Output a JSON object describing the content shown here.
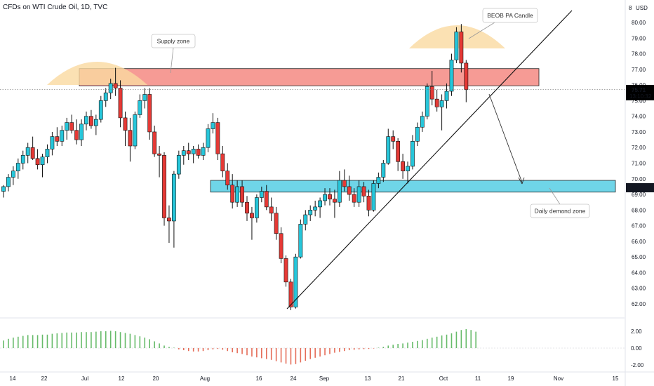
{
  "header": {
    "title": "CFDs on WTI Crude Oil, 1D, TVC"
  },
  "axis": {
    "currency": "USD",
    "currency_index": "8"
  },
  "price_tag": {
    "price": "75.71",
    "countdown": "13:10:32",
    "color": "#000000"
  },
  "demand_tag": {
    "price": "69.47",
    "color": "#131722"
  },
  "annotations": {
    "supply": "Supply zone",
    "beob": "BEOB PA Candle",
    "demand": "Daily demand zone"
  },
  "colors": {
    "up": "#26c6da",
    "down": "#e53935",
    "supply_zone": "#f48a83",
    "demand_zone": "#5fd0e6",
    "hump": "#fad9a0"
  },
  "chart_data": [
    {
      "type": "candlestick",
      "title": "CFDs on WTI Crude Oil, 1D, TVC",
      "ylim": [
        61.2,
        81.0
      ],
      "y_ticks": [
        "62.00",
        "63.00",
        "64.00",
        "65.00",
        "66.00",
        "67.00",
        "68.00",
        "69.00",
        "70.00",
        "71.00",
        "72.00",
        "73.00",
        "74.00",
        "75.00",
        "76.00",
        "77.00",
        "78.00",
        "79.00",
        "80.00"
      ],
      "x_ticks": [
        "14",
        "22",
        "Jul",
        "12",
        "20",
        "Aug",
        "16",
        "24",
        "Sep",
        "13",
        "21",
        "Oct",
        "11",
        "19",
        "Nov",
        "15"
      ],
      "zones": [
        {
          "name": "Supply zone",
          "from": 75.95,
          "to": 77.05
        },
        {
          "name": "Daily demand zone",
          "from": 69.15,
          "to": 69.9
        }
      ],
      "candles": [
        [
          69.2,
          69.6,
          68.8,
          69.5
        ],
        [
          69.5,
          70.3,
          69.2,
          70.1
        ],
        [
          70.1,
          70.8,
          69.6,
          70.5
        ],
        [
          70.5,
          71.3,
          70.0,
          71.0
        ],
        [
          71.0,
          71.8,
          70.6,
          71.5
        ],
        [
          71.5,
          72.3,
          71.0,
          72.0
        ],
        [
          72.0,
          72.7,
          71.2,
          71.3
        ],
        [
          71.3,
          71.9,
          70.6,
          70.9
        ],
        [
          70.9,
          71.6,
          70.1,
          71.4
        ],
        [
          71.4,
          72.2,
          71.0,
          71.9
        ],
        [
          71.9,
          73.0,
          71.5,
          72.7
        ],
        [
          72.7,
          73.3,
          72.1,
          72.4
        ],
        [
          72.4,
          73.4,
          72.1,
          73.1
        ],
        [
          73.1,
          73.9,
          72.5,
          73.6
        ],
        [
          73.6,
          74.1,
          72.9,
          73.1
        ],
        [
          73.1,
          73.8,
          72.2,
          72.5
        ],
        [
          72.5,
          73.8,
          72.1,
          73.5
        ],
        [
          73.5,
          74.3,
          73.1,
          74.0
        ],
        [
          74.0,
          74.4,
          73.2,
          73.4
        ],
        [
          73.4,
          74.1,
          72.8,
          73.8
        ],
        [
          73.8,
          75.3,
          73.6,
          75.0
        ],
        [
          75.0,
          75.8,
          74.6,
          75.5
        ],
        [
          75.5,
          76.4,
          75.1,
          76.1
        ],
        [
          76.1,
          77.1,
          75.3,
          75.8
        ],
        [
          75.8,
          76.3,
          73.3,
          73.9
        ],
        [
          73.9,
          74.3,
          72.1,
          73.1
        ],
        [
          73.1,
          73.9,
          71.1,
          72.1
        ],
        [
          72.1,
          74.3,
          71.9,
          74.1
        ],
        [
          74.1,
          75.4,
          73.9,
          75.0
        ],
        [
          75.0,
          75.8,
          74.5,
          75.4
        ],
        [
          75.4,
          75.8,
          72.5,
          73.0
        ],
        [
          73.0,
          73.4,
          71.4,
          71.6
        ],
        [
          71.6,
          72.1,
          70.1,
          71.5
        ],
        [
          71.5,
          71.7,
          67.0,
          67.5
        ],
        [
          67.5,
          68.3,
          65.9,
          67.3
        ],
        [
          67.3,
          70.5,
          65.6,
          70.3
        ],
        [
          70.3,
          71.8,
          70.0,
          71.5
        ],
        [
          71.5,
          72.1,
          70.9,
          71.8
        ],
        [
          71.8,
          72.3,
          71.2,
          71.6
        ],
        [
          71.6,
          72.1,
          71.0,
          71.9
        ],
        [
          71.9,
          72.2,
          71.3,
          71.5
        ],
        [
          71.5,
          72.3,
          71.2,
          72.0
        ],
        [
          72.0,
          73.5,
          71.7,
          73.2
        ],
        [
          73.2,
          74.2,
          72.9,
          73.6
        ],
        [
          73.6,
          73.9,
          71.2,
          71.6
        ],
        [
          71.6,
          72.1,
          70.1,
          70.5
        ],
        [
          70.5,
          71.0,
          69.3,
          69.6
        ],
        [
          69.6,
          70.3,
          68.1,
          68.5
        ],
        [
          68.5,
          69.9,
          68.2,
          69.5
        ],
        [
          69.5,
          69.9,
          68.2,
          68.5
        ],
        [
          68.5,
          68.9,
          67.3,
          67.8
        ],
        [
          67.8,
          68.2,
          66.1,
          67.5
        ],
        [
          67.5,
          69.0,
          67.2,
          68.8
        ],
        [
          68.8,
          69.5,
          68.5,
          69.2
        ],
        [
          69.2,
          69.6,
          68.0,
          68.2
        ],
        [
          68.2,
          68.8,
          67.3,
          67.8
        ],
        [
          67.8,
          68.2,
          66.1,
          66.5
        ],
        [
          66.5,
          66.9,
          64.6,
          64.9
        ],
        [
          64.9,
          65.1,
          63.1,
          63.4
        ],
        [
          63.4,
          63.6,
          61.6,
          61.8
        ],
        [
          61.8,
          65.2,
          61.7,
          65.0
        ],
        [
          65.0,
          67.4,
          64.9,
          67.1
        ],
        [
          67.1,
          68.0,
          66.7,
          67.7
        ],
        [
          67.7,
          68.3,
          67.3,
          68.0
        ],
        [
          68.0,
          68.6,
          67.6,
          68.2
        ],
        [
          68.2,
          68.8,
          67.5,
          68.6
        ],
        [
          68.6,
          69.4,
          68.3,
          69.0
        ],
        [
          69.0,
          69.4,
          68.3,
          68.7
        ],
        [
          68.7,
          69.3,
          67.5,
          68.5
        ],
        [
          68.5,
          70.5,
          68.2,
          69.9
        ],
        [
          69.9,
          70.6,
          69.2,
          69.5
        ],
        [
          69.5,
          70.2,
          68.6,
          69.0
        ],
        [
          69.0,
          69.4,
          68.2,
          68.5
        ],
        [
          68.5,
          69.9,
          68.2,
          69.5
        ],
        [
          69.5,
          69.8,
          68.5,
          68.9
        ],
        [
          68.9,
          69.3,
          67.6,
          68.0
        ],
        [
          68.0,
          69.9,
          67.9,
          69.7
        ],
        [
          69.7,
          70.4,
          69.4,
          70.1
        ],
        [
          70.1,
          71.2,
          69.8,
          71.0
        ],
        [
          71.0,
          73.2,
          70.9,
          72.7
        ],
        [
          72.7,
          73.1,
          71.9,
          72.4
        ],
        [
          72.4,
          72.6,
          70.5,
          71.1
        ],
        [
          71.1,
          71.6,
          70.0,
          70.5
        ],
        [
          70.5,
          71.1,
          69.7,
          70.8
        ],
        [
          70.8,
          72.8,
          70.6,
          72.4
        ],
        [
          72.4,
          73.6,
          72.1,
          73.3
        ],
        [
          73.3,
          74.3,
          73.0,
          74.0
        ],
        [
          74.0,
          76.1,
          73.8,
          75.9
        ],
        [
          75.9,
          76.9,
          74.7,
          75.1
        ],
        [
          75.1,
          75.7,
          74.3,
          74.6
        ],
        [
          74.6,
          75.4,
          73.1,
          75.0
        ],
        [
          75.0,
          76.1,
          74.5,
          75.6
        ],
        [
          75.6,
          78.0,
          75.3,
          77.6
        ],
        [
          77.6,
          79.7,
          77.4,
          79.4
        ],
        [
          79.4,
          79.9,
          76.8,
          77.4
        ],
        [
          77.4,
          77.6,
          74.9,
          75.7
        ]
      ]
    },
    {
      "type": "bar",
      "title": "",
      "ylim": [
        -2.1,
        2.45
      ],
      "y_ticks": [
        "2.00",
        "0.00",
        "-2.00"
      ],
      "values": [
        0.9,
        1.1,
        1.25,
        1.35,
        1.45,
        1.55,
        1.55,
        1.55,
        1.6,
        1.6,
        1.7,
        1.75,
        1.8,
        1.85,
        1.85,
        1.85,
        1.9,
        1.9,
        1.9,
        1.95,
        2.0,
        2.0,
        2.05,
        2.0,
        1.9,
        1.8,
        1.7,
        1.55,
        1.4,
        1.25,
        1.05,
        0.8,
        0.55,
        0.3,
        0.15,
        0.05,
        -0.15,
        -0.25,
        -0.35,
        -0.4,
        -0.4,
        -0.35,
        -0.25,
        -0.15,
        -0.1,
        -0.2,
        -0.35,
        -0.5,
        -0.6,
        -0.7,
        -0.85,
        -1.0,
        -1.1,
        -1.2,
        -1.3,
        -1.4,
        -1.55,
        -1.7,
        -1.85,
        -1.95,
        -1.9,
        -1.7,
        -1.5,
        -1.3,
        -1.15,
        -1.0,
        -0.85,
        -0.7,
        -0.55,
        -0.45,
        -0.35,
        -0.25,
        -0.2,
        -0.15,
        -0.12,
        -0.1,
        -0.05,
        0.05,
        0.15,
        0.3,
        0.4,
        0.5,
        0.55,
        0.65,
        0.75,
        0.85,
        0.95,
        1.1,
        1.25,
        1.35,
        1.5,
        1.6,
        1.75,
        1.95,
        2.15,
        2.25,
        2.15,
        1.95
      ]
    }
  ]
}
